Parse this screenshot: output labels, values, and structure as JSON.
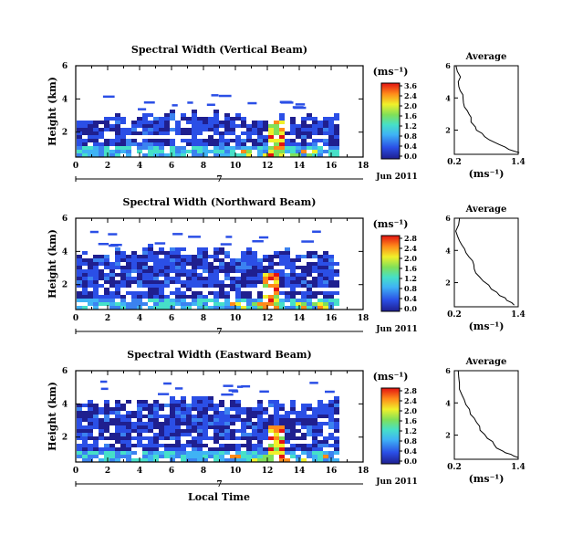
{
  "figure": {
    "bottom_xlabel": "Local Time",
    "date_label": "Jun 2011",
    "day_label": "7"
  },
  "chart_data": [
    {
      "type": "heatmap",
      "title": "Spectral Width (Vertical Beam)",
      "ylabel": "Height (km)",
      "xlabel": "",
      "xlim": [
        0,
        18
      ],
      "ylim": [
        0.5,
        6
      ],
      "x_ticks": [
        0,
        2,
        4,
        6,
        8,
        10,
        12,
        14,
        16,
        18
      ],
      "y_ticks": [
        2,
        4,
        6
      ],
      "colorbar": {
        "unit": "(ms⁻¹)",
        "ticks": [
          "3.6",
          "2.4",
          "2.0",
          "1.6",
          "1.2",
          "0.8",
          "0.4",
          "0.0"
        ]
      },
      "data_extent_hours": [
        0,
        16.5
      ],
      "echo_top_km": 3.0,
      "peak_event": {
        "x": 12.3,
        "max_value": 3.6
      },
      "average_profile": {
        "title": "Average",
        "xlabel": "(ms⁻¹)",
        "xlim": [
          0.2,
          1.4
        ],
        "ylim": [
          0.5,
          6
        ],
        "x_ticks": [
          "0.2",
          "1.4"
        ],
        "y_ticks": [
          "2",
          "4",
          "6"
        ],
        "x": [
          0.25,
          0.3,
          0.28,
          0.35,
          0.38,
          0.45,
          0.5,
          0.58,
          0.7,
          0.85,
          1.05,
          1.25,
          1.4
        ],
        "y": [
          6.0,
          5.3,
          4.7,
          4.2,
          3.7,
          3.2,
          2.8,
          2.2,
          1.8,
          1.4,
          1.1,
          0.8,
          0.6
        ]
      }
    },
    {
      "type": "heatmap",
      "title": "Spectral Width (Northward Beam)",
      "ylabel": "Height (km)",
      "xlabel": "",
      "xlim": [
        0,
        18
      ],
      "ylim": [
        0.5,
        6
      ],
      "x_ticks": [
        0,
        2,
        4,
        6,
        8,
        10,
        12,
        14,
        16,
        18
      ],
      "y_ticks": [
        2,
        4,
        6
      ],
      "colorbar": {
        "unit": "(ms⁻¹)",
        "ticks": [
          "2.8",
          "2.4",
          "2.0",
          "1.6",
          "1.2",
          "0.8",
          "0.4",
          "0.0"
        ]
      },
      "data_extent_hours": [
        0,
        16.5
      ],
      "echo_top_km": 4.0,
      "peak_event": {
        "x": 12.2,
        "max_value": 2.8
      },
      "average_profile": {
        "title": "Average",
        "xlabel": "(ms⁻¹)",
        "xlim": [
          0.2,
          1.4
        ],
        "ylim": [
          0.5,
          6
        ],
        "x_ticks": [
          "0.2",
          "1.4"
        ],
        "y_ticks": [
          "2",
          "4",
          "6"
        ],
        "x": [
          0.28,
          0.25,
          0.32,
          0.4,
          0.48,
          0.55,
          0.62,
          0.75,
          0.9,
          1.05,
          1.2,
          1.35
        ],
        "y": [
          6.0,
          5.2,
          4.6,
          4.1,
          3.6,
          3.1,
          2.6,
          2.1,
          1.6,
          1.2,
          0.9,
          0.6
        ]
      }
    },
    {
      "type": "heatmap",
      "title": "Spectral Width (Eastward Beam)",
      "ylabel": "Height (km)",
      "xlabel": "Local Time",
      "xlim": [
        0,
        18
      ],
      "ylim": [
        0.5,
        6
      ],
      "x_ticks": [
        0,
        2,
        4,
        6,
        8,
        10,
        12,
        14,
        16,
        18
      ],
      "y_ticks": [
        2,
        4,
        6
      ],
      "colorbar": {
        "unit": "(ms⁻¹)",
        "ticks": [
          "2.8",
          "2.4",
          "2.0",
          "1.6",
          "1.2",
          "0.8",
          "0.4",
          "0.0"
        ]
      },
      "data_extent_hours": [
        0,
        16.5
      ],
      "echo_top_km": 4.2,
      "peak_event": {
        "x": 12.4,
        "max_value": 2.8
      },
      "average_profile": {
        "title": "Average",
        "xlabel": "(ms⁻¹)",
        "xlim": [
          0.2,
          1.4
        ],
        "ylim": [
          0.5,
          6
        ],
        "x_ticks": [
          "0.2",
          "1.4"
        ],
        "y_ticks": [
          "2",
          "4",
          "6"
        ],
        "x": [
          0.25,
          0.3,
          0.35,
          0.42,
          0.5,
          0.6,
          0.7,
          0.82,
          0.95,
          1.1,
          1.25,
          1.4
        ],
        "y": [
          6.0,
          5.2,
          4.5,
          3.9,
          3.3,
          2.8,
          2.3,
          1.8,
          1.4,
          1.0,
          0.8,
          0.6
        ]
      }
    }
  ]
}
